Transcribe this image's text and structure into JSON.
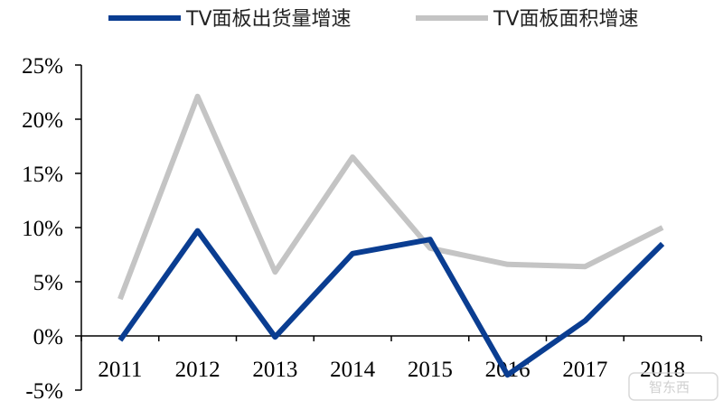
{
  "chart_data": {
    "type": "line",
    "categories": [
      "2011",
      "2012",
      "2013",
      "2014",
      "2015",
      "2016",
      "2017",
      "2018"
    ],
    "series": [
      {
        "name": "TV面板出货量增速",
        "color": "#0a3d91",
        "values": [
          -0.4,
          9.7,
          -0.1,
          7.6,
          8.9,
          -3.6,
          1.4,
          8.5
        ]
      },
      {
        "name": "TV面板面积增速",
        "color": "#c4c4c4",
        "values": [
          3.4,
          22.1,
          5.9,
          16.5,
          8.1,
          6.6,
          6.4,
          10.0
        ]
      }
    ],
    "ylim": [
      -5,
      25
    ],
    "yticks": [
      "-5%",
      "0%",
      "5%",
      "10%",
      "15%",
      "20%",
      "25%"
    ],
    "grid": false,
    "legend": "top"
  },
  "watermark": "智东西"
}
